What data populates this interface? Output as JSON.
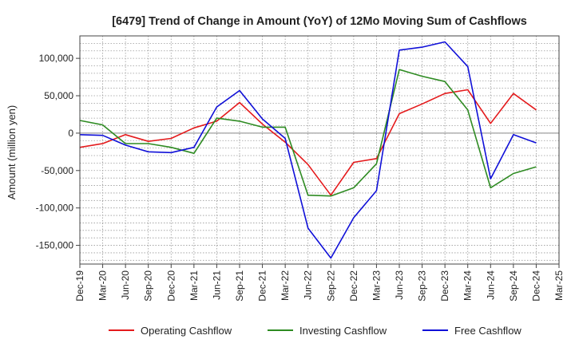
{
  "chart_data": {
    "type": "line",
    "title": "[6479]  Trend of Change in Amount (YoY) of 12Mo Moving Sum of Cashflows",
    "xlabel": "",
    "ylabel": "Amount (million yen)",
    "ylim": [
      -175000,
      130000
    ],
    "yticks": [
      -150000,
      -100000,
      -50000,
      0,
      50000,
      100000
    ],
    "ytick_labels": [
      "-150,000",
      "-100,000",
      "-50,000",
      "0",
      "50,000",
      "100,000"
    ],
    "grid": true,
    "legend_position": "bottom",
    "x_labels": [
      "Dec-19",
      "Mar-20",
      "Jun-20",
      "Sep-20",
      "Dec-20",
      "Mar-21",
      "Jun-21",
      "Sep-21",
      "Dec-21",
      "Mar-22",
      "Jun-22",
      "Sep-22",
      "Dec-22",
      "Mar-23",
      "Jun-23",
      "Sep-23",
      "Dec-23",
      "Mar-24",
      "Jun-24",
      "Sep-24",
      "Dec-24",
      "Mar-25"
    ],
    "series": [
      {
        "name": "Operating Cashflow",
        "color": "#e41a1c",
        "values": [
          -19000,
          -14000,
          -2000,
          -11000,
          -7000,
          7000,
          16000,
          41000,
          12000,
          -12000,
          -42000,
          -83000,
          -39000,
          -34000,
          26000,
          39000,
          53000,
          58000,
          13000,
          53000,
          31000,
          null
        ]
      },
      {
        "name": "Investing Cashflow",
        "color": "#2e8b22",
        "values": [
          17000,
          11000,
          -14000,
          -14000,
          -19000,
          -27000,
          20000,
          16000,
          8000,
          8000,
          -83000,
          -84000,
          -73000,
          -41000,
          85000,
          76000,
          69000,
          31000,
          -73000,
          -54000,
          -45000,
          null
        ]
      },
      {
        "name": "Free Cashflow",
        "color": "#1010d8",
        "values": [
          -2000,
          -3000,
          -16000,
          -25000,
          -26000,
          -19000,
          35000,
          57000,
          19000,
          -7000,
          -127000,
          -167000,
          -113000,
          -77000,
          111000,
          115000,
          122000,
          89000,
          -61000,
          -2000,
          -13000,
          null
        ]
      }
    ]
  }
}
